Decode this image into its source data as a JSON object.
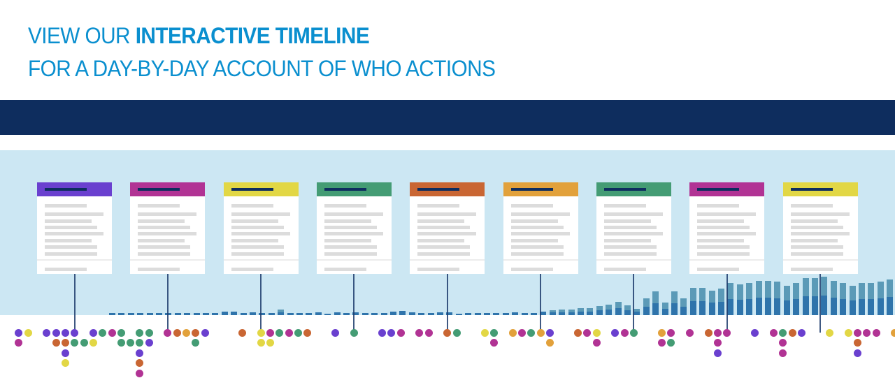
{
  "headline": {
    "line1_prefix": "VIEW OUR ",
    "line1_emphasis": "INTERACTIVE TIMELINE",
    "line2": "FOR A DAY-BY-DAY ACCOUNT OF WHO ACTIONS"
  },
  "colors": {
    "headline": "#0a8fcf",
    "navbar": "#0e2d5e",
    "band": "#cce7f3",
    "bar_dark": "#2f74ab",
    "bar_light": "#5b9ab7",
    "P": "#6a40cf",
    "M": "#b13394",
    "Y": "#e2d745",
    "G": "#449c74",
    "O": "#c96633",
    "A": "#e2a13b"
  },
  "cards": [
    "P",
    "M",
    "Y",
    "G",
    "O",
    "A",
    "G",
    "M",
    "Y"
  ],
  "timeline_bars": {
    "type": "bar",
    "values": [
      3,
      3,
      3,
      3,
      3,
      3,
      3,
      3,
      3,
      3,
      3,
      3,
      5,
      5,
      3,
      4,
      3,
      3,
      8,
      3,
      3,
      3,
      4,
      2,
      4,
      3,
      4,
      3,
      3,
      3,
      5,
      6,
      4,
      3,
      3,
      4,
      4,
      2,
      3,
      3,
      3,
      3,
      3,
      4,
      3,
      3,
      5,
      7,
      8,
      8,
      10,
      10,
      13,
      15,
      19,
      14,
      9,
      24,
      34,
      18,
      34,
      24,
      39,
      39,
      35,
      38,
      46,
      44,
      46,
      49,
      49,
      48,
      42,
      46,
      53,
      53,
      55,
      49,
      46,
      42,
      46,
      46,
      48,
      51
    ]
  },
  "dot_columns": [
    {
      "col": 0,
      "dots": [
        "P",
        "M"
      ]
    },
    {
      "col": 1,
      "dots": [
        "Y"
      ]
    },
    {
      "col": 3,
      "dots": [
        "P"
      ]
    },
    {
      "col": 4,
      "dots": [
        "P",
        "O"
      ]
    },
    {
      "col": 5,
      "dots": [
        "P",
        "O",
        "P",
        "Y"
      ]
    },
    {
      "col": 6,
      "dots": [
        "P",
        "G"
      ]
    },
    {
      "col": 7,
      "dots": [
        null,
        "G"
      ]
    },
    {
      "col": 8,
      "dots": [
        "P",
        "Y"
      ]
    },
    {
      "col": 9,
      "dots": [
        "G"
      ]
    },
    {
      "col": 10,
      "dots": [
        "M"
      ]
    },
    {
      "col": 11,
      "dots": [
        "G",
        "G"
      ]
    },
    {
      "col": 12,
      "dots": [
        null,
        "G"
      ]
    },
    {
      "col": 13,
      "dots": [
        "G",
        "G",
        "P",
        "O",
        "M"
      ]
    },
    {
      "col": 14,
      "dots": [
        "G",
        "P"
      ]
    },
    {
      "col": 16,
      "dots": [
        "M"
      ]
    },
    {
      "col": 17,
      "dots": [
        "O"
      ]
    },
    {
      "col": 18,
      "dots": [
        "A"
      ]
    },
    {
      "col": 19,
      "dots": [
        "O",
        "G"
      ]
    },
    {
      "col": 20,
      "dots": [
        "P"
      ]
    },
    {
      "col": 24,
      "dots": [
        "O"
      ]
    },
    {
      "col": 26,
      "dots": [
        "Y",
        "Y"
      ]
    },
    {
      "col": 27,
      "dots": [
        "M",
        "Y"
      ]
    },
    {
      "col": 28,
      "dots": [
        "G"
      ]
    },
    {
      "col": 29,
      "dots": [
        "M"
      ]
    },
    {
      "col": 30,
      "dots": [
        "G"
      ]
    },
    {
      "col": 31,
      "dots": [
        "O"
      ]
    },
    {
      "col": 34,
      "dots": [
        "P"
      ]
    },
    {
      "col": 36,
      "dots": [
        "G"
      ]
    },
    {
      "col": 39,
      "dots": [
        "P"
      ]
    },
    {
      "col": 40,
      "dots": [
        "P"
      ]
    },
    {
      "col": 41,
      "dots": [
        "M"
      ]
    },
    {
      "col": 43,
      "dots": [
        "M"
      ]
    },
    {
      "col": 44,
      "dots": [
        "M"
      ]
    },
    {
      "col": 46,
      "dots": [
        "O"
      ]
    },
    {
      "col": 47,
      "dots": [
        "G"
      ]
    },
    {
      "col": 50,
      "dots": [
        "Y"
      ]
    },
    {
      "col": 51,
      "dots": [
        "G",
        "M"
      ]
    },
    {
      "col": 53,
      "dots": [
        "A"
      ]
    },
    {
      "col": 54,
      "dots": [
        "M"
      ]
    },
    {
      "col": 55,
      "dots": [
        "G"
      ]
    },
    {
      "col": 56,
      "dots": [
        "A"
      ]
    },
    {
      "col": 57,
      "dots": [
        "P",
        "A"
      ]
    },
    {
      "col": 60,
      "dots": [
        "O"
      ]
    },
    {
      "col": 61,
      "dots": [
        "M"
      ]
    },
    {
      "col": 62,
      "dots": [
        "Y",
        "M"
      ]
    },
    {
      "col": 64,
      "dots": [
        "P"
      ]
    },
    {
      "col": 65,
      "dots": [
        "M"
      ]
    },
    {
      "col": 66,
      "dots": [
        "G"
      ]
    },
    {
      "col": 69,
      "dots": [
        "A",
        "M"
      ]
    },
    {
      "col": 70,
      "dots": [
        "M",
        "G"
      ]
    },
    {
      "col": 72,
      "dots": [
        "M"
      ]
    },
    {
      "col": 74,
      "dots": [
        "O"
      ]
    },
    {
      "col": 75,
      "dots": [
        "M",
        "M",
        "P"
      ]
    },
    {
      "col": 76,
      "dots": [
        "M"
      ]
    },
    {
      "col": 79,
      "dots": [
        "P"
      ]
    },
    {
      "col": 81,
      "dots": [
        "M"
      ]
    },
    {
      "col": 82,
      "dots": [
        "G",
        "M",
        "M"
      ]
    },
    {
      "col": 83,
      "dots": [
        "O"
      ]
    },
    {
      "col": 84,
      "dots": [
        "P"
      ]
    },
    {
      "col": 87,
      "dots": [
        "Y"
      ]
    },
    {
      "col": 89,
      "dots": [
        "Y"
      ]
    },
    {
      "col": 90,
      "dots": [
        "M",
        "O",
        "P"
      ]
    },
    {
      "col": 91,
      "dots": [
        "M"
      ]
    },
    {
      "col": 92,
      "dots": [
        "M"
      ]
    },
    {
      "col": 94,
      "dots": [
        "A"
      ]
    },
    {
      "col": 95,
      "dots": [
        "A"
      ]
    }
  ]
}
